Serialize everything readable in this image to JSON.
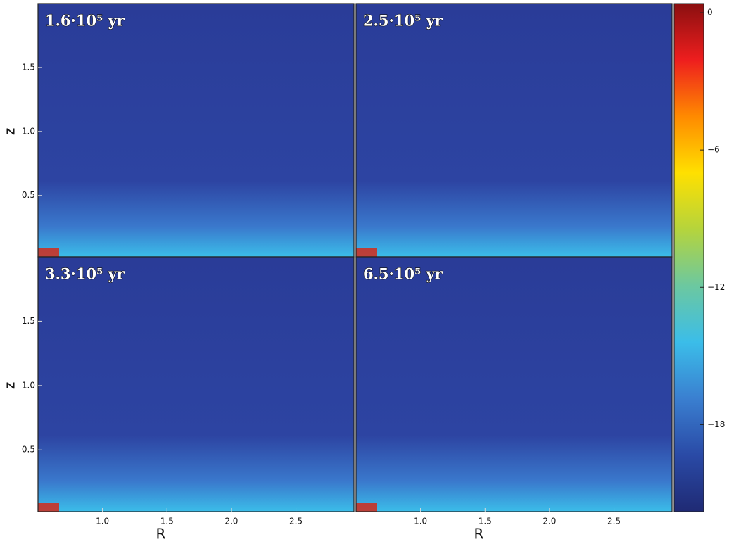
{
  "chart_data": [
    {
      "type": "heatmap",
      "annotation": "1.6·10⁵ yr",
      "xlim": [
        0.5,
        2.95
      ],
      "ylim": [
        0.02,
        2.0
      ],
      "yticks": [
        0.5,
        {
          "value": 1,
          "label": "1.0"
        },
        1.5
      ],
      "ylabel": "z"
    },
    {
      "type": "heatmap",
      "annotation": "2.5·10⁵ yr",
      "xlim": [
        0.5,
        2.95
      ],
      "ylim": [
        0.02,
        2.0
      ]
    },
    {
      "type": "heatmap",
      "annotation": "3.3·10⁵ yr",
      "xlim": [
        0.5,
        2.95
      ],
      "ylim": [
        0.02,
        2.0
      ],
      "yticks": [
        0.5,
        {
          "value": 1,
          "label": "1.0"
        },
        1.5
      ],
      "ylabel": "z",
      "xticks": [
        {
          "value": 1,
          "label": "1.0"
        },
        1.5,
        {
          "value": 2,
          "label": "2.0"
        },
        2.5
      ],
      "xlabel": "R"
    },
    {
      "type": "heatmap",
      "annotation": "6.5·10⁵ yr",
      "xlim": [
        0.5,
        2.95
      ],
      "ylim": [
        0.02,
        2.0
      ],
      "xticks": [
        {
          "value": 1,
          "label": "1.0"
        },
        1.5,
        {
          "value": 2,
          "label": "2.0"
        },
        2.5
      ],
      "xlabel": "R"
    },
    {
      "type": "colorbar",
      "ylim": [
        -21.8,
        0.4
      ],
      "yticks": [
        0,
        {
          "value": -6,
          "label": "−6"
        },
        {
          "value": -12,
          "label": "−12"
        },
        {
          "value": -18,
          "label": "−18"
        }
      ],
      "colors": [
        "#1f2a74",
        "#2a4aa6",
        "#3a7fd0",
        "#3bbde9",
        "#6cc8a0",
        "#b5d43c",
        "#ffe000",
        "#ff8a00",
        "#ee1e1e",
        "#8a0f10"
      ]
    }
  ]
}
